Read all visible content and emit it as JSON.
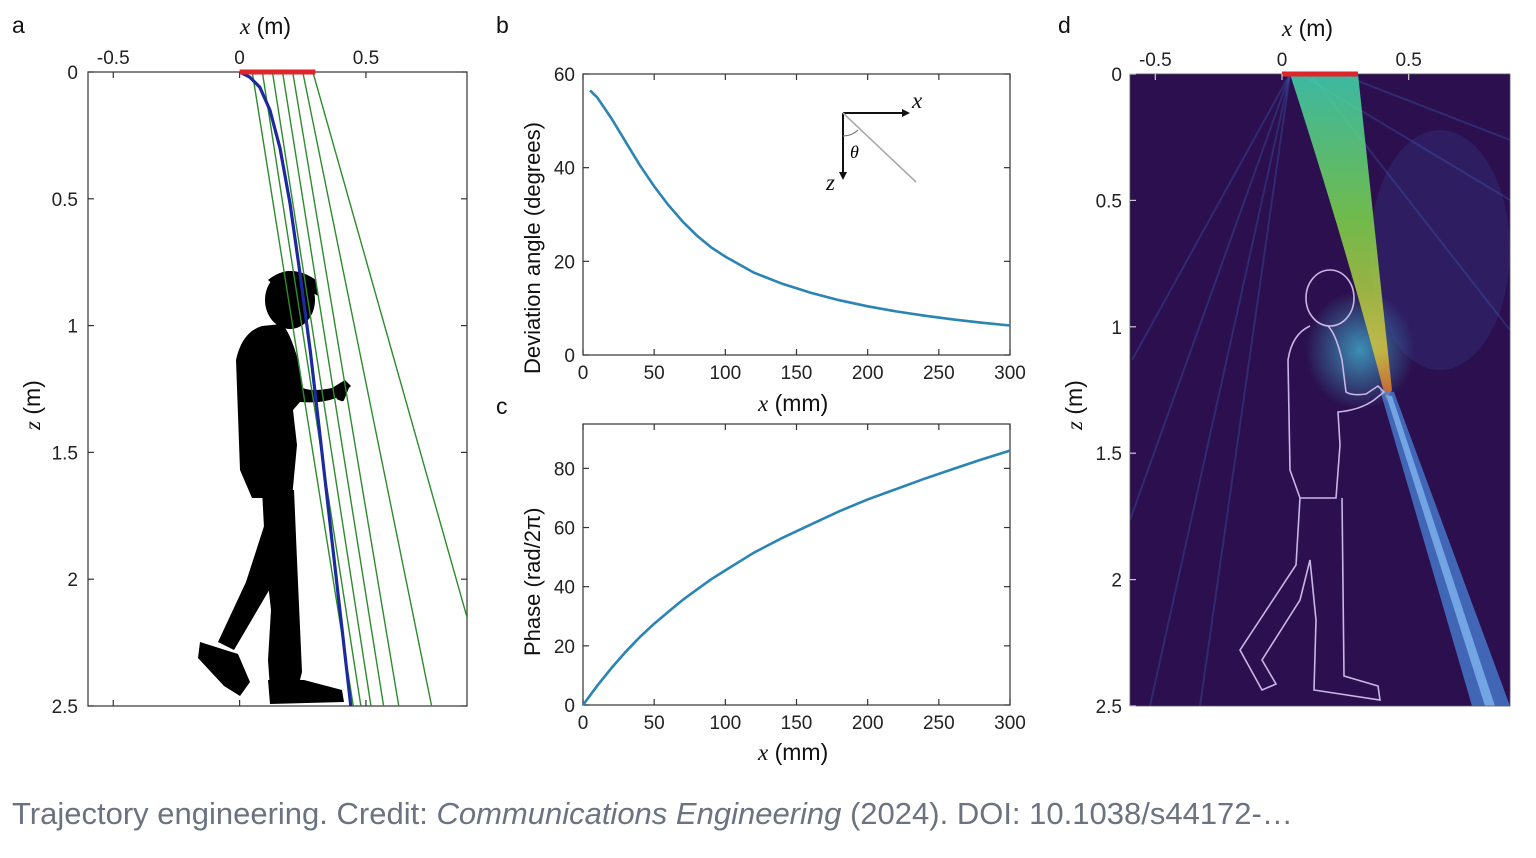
{
  "caption": {
    "text1": "Trajectory engineering. Credit: ",
    "text2": "Communications Engineering",
    "text3": " (2024). DOI: 10.1038/s44172-…"
  },
  "colors": {
    "blue_curve": "#1c2a9e",
    "green_rays": "#2e8b2e",
    "red_aperture": "#e0242a",
    "line_plot": "#2a84b4",
    "heatmap_bg": "#2b0f4e",
    "beam": "#46d49a"
  },
  "icons": [
    "person-silhouette",
    "person-outline",
    "axis-inset-icon"
  ],
  "chart_data": [
    {
      "panel": "a",
      "type": "line",
      "xlabel_var": "x",
      "xlabel_unit": " (m)",
      "ylabel_var": "z",
      "ylabel_unit": " (m)",
      "xlim": [
        -0.6,
        0.9
      ],
      "ylim": [
        0,
        2.5
      ],
      "y_inverted": true,
      "x_axis_position": "top",
      "x_ticks": [
        {
          "v": -0.5,
          "t": "-0.5"
        },
        {
          "v": 0,
          "t": "0"
        },
        {
          "v": 0.5,
          "t": "0.5"
        }
      ],
      "y_ticks": [
        {
          "v": 0,
          "t": "0"
        },
        {
          "v": 0.5,
          "t": "0.5"
        },
        {
          "v": 1,
          "t": "1"
        },
        {
          "v": 1.5,
          "t": "1.5"
        },
        {
          "v": 2,
          "t": "2"
        },
        {
          "v": 2.5,
          "t": "2.5"
        }
      ],
      "aperture": {
        "x0": 0,
        "x1": 0.3,
        "z": 0
      },
      "caustic_curve": [
        [
          0,
          0
        ],
        [
          0.04,
          0.02
        ],
        [
          0.08,
          0.06
        ],
        [
          0.12,
          0.15
        ],
        [
          0.16,
          0.3
        ],
        [
          0.2,
          0.52
        ],
        [
          0.24,
          0.8
        ],
        [
          0.28,
          1.1
        ],
        [
          0.32,
          1.45
        ],
        [
          0.36,
          1.8
        ],
        [
          0.4,
          2.15
        ],
        [
          0.44,
          2.5
        ]
      ],
      "rays": [
        [
          [
            0.05,
            0
          ],
          [
            0.45,
            2.5
          ]
        ],
        [
          [
            0.09,
            0
          ],
          [
            0.48,
            2.5
          ]
        ],
        [
          [
            0.13,
            0
          ],
          [
            0.52,
            2.5
          ]
        ],
        [
          [
            0.17,
            0
          ],
          [
            0.57,
            2.5
          ]
        ],
        [
          [
            0.21,
            0
          ],
          [
            0.63,
            2.5
          ]
        ],
        [
          [
            0.25,
            0
          ],
          [
            0.76,
            2.5
          ]
        ],
        [
          [
            0.29,
            0
          ],
          [
            0.9,
            2.15
          ]
        ]
      ]
    },
    {
      "panel": "b",
      "type": "line",
      "xlabel_var": "x",
      "xlabel_unit": " (mm)",
      "ylabel": "Deviation angle (degrees)",
      "xlim": [
        0,
        300
      ],
      "ylim": [
        0,
        60
      ],
      "x_ticks": [
        0,
        50,
        100,
        150,
        200,
        250,
        300
      ],
      "y_ticks": [
        0,
        20,
        40,
        60
      ],
      "x": [
        5,
        10,
        20,
        30,
        40,
        50,
        60,
        70,
        80,
        90,
        100,
        120,
        140,
        160,
        180,
        200,
        220,
        240,
        260,
        280,
        300
      ],
      "y": [
        56.5,
        55,
        50.5,
        45.5,
        40.5,
        36,
        32,
        28.5,
        25.5,
        23,
        21,
        17.6,
        15.2,
        13.3,
        11.7,
        10.4,
        9.3,
        8.4,
        7.6,
        6.9,
        6.3
      ],
      "inset": {
        "x_label": "x",
        "z_label": "z",
        "angle_label": "θ"
      }
    },
    {
      "panel": "c",
      "type": "line",
      "xlabel_var": "x",
      "xlabel_unit": " (mm)",
      "ylabel": "Phase (rad/2π)",
      "xlim": [
        0,
        300
      ],
      "ylim": [
        0,
        95
      ],
      "x_ticks": [
        0,
        50,
        100,
        150,
        200,
        250,
        300
      ],
      "y_ticks": [
        0,
        20,
        40,
        60,
        80
      ],
      "x": [
        0,
        10,
        20,
        30,
        40,
        50,
        60,
        70,
        80,
        90,
        100,
        120,
        140,
        160,
        180,
        200,
        220,
        240,
        260,
        280,
        300
      ],
      "y": [
        0,
        6.5,
        12.5,
        18,
        23,
        27.5,
        31.5,
        35.5,
        39,
        42.5,
        45.5,
        51.5,
        56.5,
        61,
        65.5,
        69.5,
        73,
        76.5,
        79.8,
        83,
        86
      ]
    },
    {
      "panel": "d",
      "type": "heatmap",
      "xlabel_var": "x",
      "xlabel_unit": " (m)",
      "ylabel_var": "z",
      "ylabel_unit": " (m)",
      "xlim": [
        -0.6,
        0.9
      ],
      "ylim": [
        0,
        2.5
      ],
      "y_inverted": true,
      "x_axis_position": "top",
      "x_ticks": [
        {
          "v": -0.5,
          "t": "-0.5"
        },
        {
          "v": 0,
          "t": "0"
        },
        {
          "v": 0.5,
          "t": "0.5"
        }
      ],
      "y_ticks": [
        {
          "v": 0,
          "t": "0"
        },
        {
          "v": 0.5,
          "t": "0.5"
        },
        {
          "v": 1,
          "t": "1"
        },
        {
          "v": 1.5,
          "t": "1.5"
        },
        {
          "v": 2,
          "t": "2"
        },
        {
          "v": 2.5,
          "t": "2.5"
        }
      ],
      "aperture": {
        "x0": 0,
        "x1": 0.3,
        "z": 0
      }
    }
  ],
  "panel_letters": {
    "a": "a",
    "b": "b",
    "c": "c",
    "d": "d"
  }
}
